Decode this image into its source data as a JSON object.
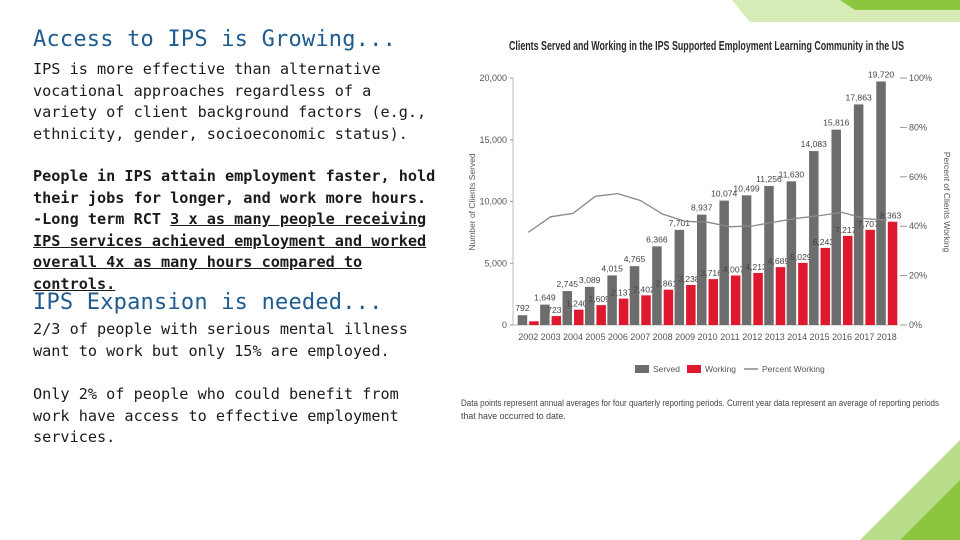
{
  "left": {
    "heading1": "Access to IPS is Growing...",
    "para1": "IPS is more effective than alternative vocational approaches regardless of a variety of client background factors (e.g., ethnicity, gender, socioeconomic status).",
    "para2_bold": "People in IPS attain employment faster, hold their jobs for longer, and work more hours.",
    "para2_rct_prefix": "-Long term RCT ",
    "para2_rct_underlined": "3 x as many people receiving IPS services achieved employment and worked overall 4x as many hours compared to controls.",
    "heading2": "IPS Expansion is needed...",
    "para3": "2/3 of people with serious mental illness want to work but only 15% are employed.",
    "para4": "Only 2% of people who could benefit from work have access to effective employment services."
  },
  "colors": {
    "heading": "#1f5b8f",
    "served": "#6d6d6d",
    "working": "#e0182d",
    "line": "#8a8a8a",
    "accent_green": "#8cc63f"
  },
  "chart_data": {
    "type": "bar",
    "title": "Clients Served and Working in the IPS Supported Employment Learning Community in the US",
    "ylabel": "Number of Clients Served",
    "y2label": "Percent of Clients Working",
    "categories": [
      "2002",
      "2003",
      "2004",
      "2005",
      "2006",
      "2007",
      "2008",
      "2009",
      "2010",
      "2011",
      "2012",
      "2013",
      "2014",
      "2015",
      "2016",
      "2017",
      "2018"
    ],
    "ylim": [
      0,
      20000
    ],
    "yticks": [
      "0",
      "5,000",
      "10,000",
      "15,000",
      "20,000"
    ],
    "y2lim": [
      0,
      100
    ],
    "y2ticks": [
      "0%",
      "20%",
      "40%",
      "60%",
      "80%",
      "100%"
    ],
    "series": [
      {
        "name": "Served",
        "type": "bar",
        "values": [
          792,
          1649,
          2745,
          3089,
          4015,
          4765,
          6366,
          7701,
          8937,
          10074,
          10499,
          11256,
          11630,
          14083,
          15816,
          17863,
          19720
        ],
        "labels": [
          "792",
          "1,649",
          "2,745",
          "3,089",
          "4,015",
          "4,765",
          "6,366",
          "7,701",
          "8,937",
          "10,074",
          "10,499",
          "11,256",
          "11,630",
          "14,083",
          "15,816",
          "17,863",
          "19,720"
        ]
      },
      {
        "name": "Working",
        "type": "bar",
        "values": [
          300,
          723,
          1240,
          1609,
          2137,
          2402,
          2861,
          3238,
          3716,
          4007,
          4213,
          4689,
          5029,
          6243,
          7217,
          7707,
          8363
        ],
        "labels": [
          "",
          "723",
          "1,240",
          "1,609",
          "2,137",
          "2,402",
          "2,861",
          "3,238",
          "3,716",
          "4,007",
          "4,213",
          "4,689",
          "5,029",
          "6,243",
          "7,217",
          "7,707",
          "8,363"
        ]
      },
      {
        "name": "Percent Working",
        "type": "line",
        "values": [
          37.5,
          43.8,
          45.2,
          52.1,
          53.2,
          50.4,
          44.9,
          42.0,
          41.6,
          39.8,
          40.1,
          41.7,
          43.2,
          44.3,
          45.6,
          43.1,
          42.4
        ]
      }
    ],
    "legend": [
      "Served",
      "Working",
      "Percent Working"
    ],
    "legend_position": "bottom",
    "note": "Data points represent annual averages for four quarterly reporting periods. Current year data represent an average of reporting periods that have occurred to date."
  }
}
